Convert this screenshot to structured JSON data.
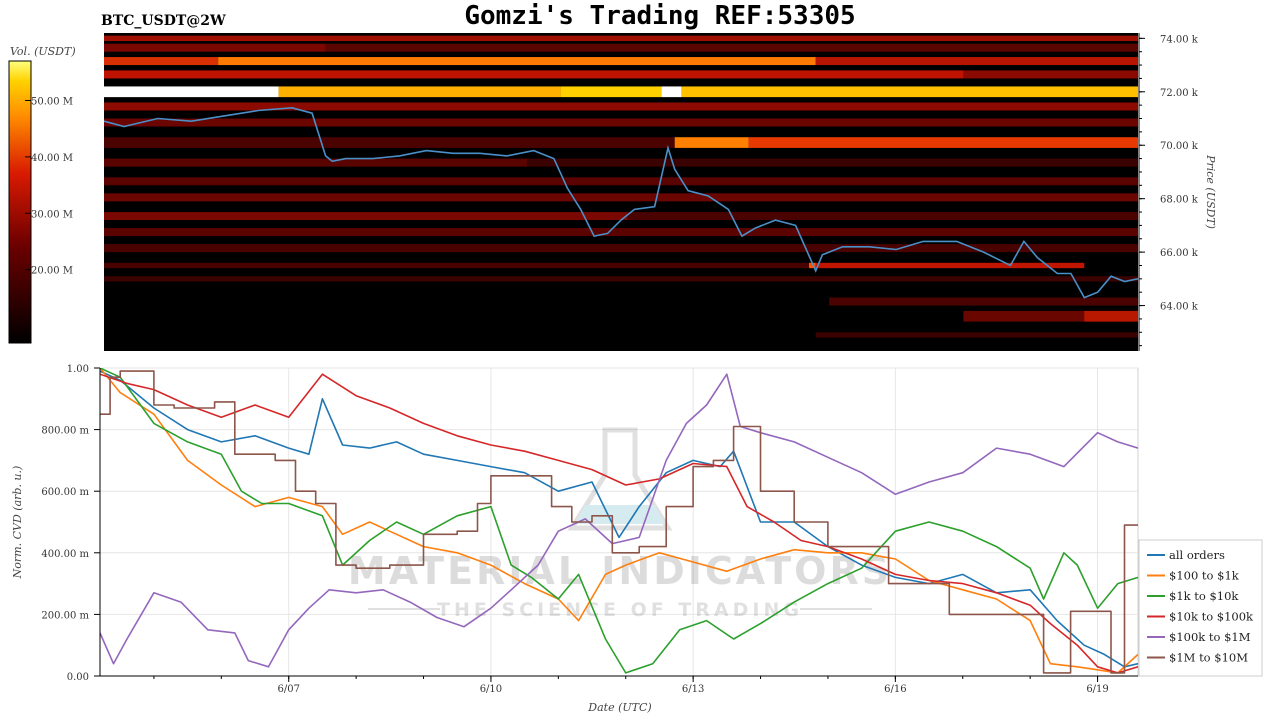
{
  "title": "Gomzi's Trading REF:53305",
  "symbol_label": "BTC_USDT@2W",
  "watermark": {
    "line1": "MATERIAL INDICATORS",
    "line2": "THE SCIENCE OF TRADING"
  },
  "colors": {
    "heat_low": "#000000",
    "heat_mid": "#cc1100",
    "heat_high": "#ffff66",
    "price_line": "#4a90c8",
    "grid": "#e6e6e6"
  },
  "chart_data": [
    {
      "type": "heatmap",
      "title": "",
      "colorbar_label": "Vol. (USDT)",
      "colorbar_ticks": [
        "50.00 M",
        "40.00 M",
        "30.00 M",
        "20.00 M"
      ],
      "colorbar_tick_values": [
        50,
        40,
        30,
        20
      ],
      "colorbar_range": [
        7,
        57
      ],
      "ylabel": "Price (USDT)",
      "y_ticks": [
        "74.00 k",
        "72.00 k",
        "70.00 k",
        "68.00 k",
        "66.00 k",
        "64.00 k"
      ],
      "y_tick_values": [
        74000,
        72000,
        70000,
        68000,
        66000,
        64000
      ],
      "ylim": [
        62300,
        74200
      ],
      "x_range": [
        4.2,
        19.6
      ],
      "price_series": {
        "name": "",
        "x": [
          4.2,
          4.5,
          5.0,
          5.5,
          6.0,
          6.5,
          7.0,
          7.3,
          7.5,
          7.6,
          7.8,
          8.2,
          8.6,
          9.0,
          9.4,
          9.8,
          10.2,
          10.6,
          10.9,
          11.1,
          11.3,
          11.5,
          11.7,
          11.9,
          12.1,
          12.4,
          12.6,
          12.7,
          12.9,
          13.2,
          13.5,
          13.7,
          13.9,
          14.2,
          14.5,
          14.8,
          14.9,
          15.2,
          15.6,
          16.0,
          16.4,
          16.9,
          17.3,
          17.7,
          17.9,
          18.1,
          18.4,
          18.6,
          18.8,
          19.0,
          19.2,
          19.4,
          19.6
        ],
        "y": [
          70900,
          70700,
          71000,
          70900,
          71100,
          71300,
          71400,
          71200,
          69600,
          69400,
          69500,
          69500,
          69600,
          69800,
          69700,
          69700,
          69600,
          69800,
          69500,
          68400,
          67600,
          66600,
          66700,
          67200,
          67600,
          67700,
          69900,
          69100,
          68300,
          68100,
          67600,
          66600,
          66900,
          67200,
          67000,
          65300,
          65900,
          66200,
          66200,
          66100,
          66400,
          66400,
          66000,
          65500,
          66400,
          65800,
          65200,
          65200,
          64300,
          64500,
          65100,
          64900,
          65000
        ]
      }
    },
    {
      "type": "line",
      "title": "",
      "xlabel": "Date (UTC)",
      "ylabel": "Norm. CVD (arb. u.)",
      "x_ticks": [
        "6/07",
        "6/10",
        "6/13",
        "6/16",
        "6/19"
      ],
      "x_tick_values": [
        7,
        10,
        13,
        16,
        19
      ],
      "xlim": [
        4.2,
        19.6
      ],
      "y_ticks": [
        "0.00",
        "200.00 m",
        "400.00 m",
        "600.00 m",
        "800.00 m",
        "1.00"
      ],
      "y_tick_values": [
        0,
        0.2,
        0.4,
        0.6,
        0.8,
        1.0
      ],
      "ylim": [
        0,
        1.0
      ],
      "legend_position": "right",
      "series": [
        {
          "name": "all orders",
          "color": "#1f77b4",
          "x": [
            4.2,
            4.5,
            5.0,
            5.5,
            6.0,
            6.5,
            7.0,
            7.3,
            7.5,
            7.8,
            8.2,
            8.6,
            9.0,
            9.5,
            10.0,
            10.5,
            11.0,
            11.5,
            11.9,
            12.2,
            12.6,
            13.0,
            13.4,
            13.6,
            14.0,
            14.5,
            15.0,
            15.5,
            16.0,
            16.5,
            17.0,
            17.5,
            18.0,
            18.4,
            18.8,
            19.1,
            19.4,
            19.6
          ],
          "y": [
            0.99,
            0.96,
            0.87,
            0.8,
            0.76,
            0.78,
            0.74,
            0.72,
            0.9,
            0.75,
            0.74,
            0.76,
            0.72,
            0.7,
            0.68,
            0.66,
            0.6,
            0.63,
            0.45,
            0.55,
            0.66,
            0.7,
            0.68,
            0.73,
            0.5,
            0.5,
            0.42,
            0.36,
            0.32,
            0.3,
            0.33,
            0.27,
            0.28,
            0.18,
            0.1,
            0.07,
            0.03,
            0.04
          ]
        },
        {
          "name": "$100 to $1k",
          "color": "#ff7f0e",
          "x": [
            4.2,
            4.5,
            5.0,
            5.5,
            6.0,
            6.5,
            7.0,
            7.5,
            7.8,
            8.2,
            8.6,
            9.0,
            9.5,
            10.0,
            10.5,
            11.0,
            11.3,
            11.7,
            12.0,
            12.5,
            13.0,
            13.5,
            14.0,
            14.5,
            15.0,
            15.5,
            16.0,
            16.5,
            17.0,
            17.5,
            18.0,
            18.3,
            18.7,
            19.0,
            19.3,
            19.6
          ],
          "y": [
            1.0,
            0.92,
            0.85,
            0.7,
            0.62,
            0.55,
            0.58,
            0.55,
            0.46,
            0.5,
            0.46,
            0.42,
            0.4,
            0.36,
            0.3,
            0.25,
            0.18,
            0.33,
            0.36,
            0.4,
            0.37,
            0.34,
            0.38,
            0.41,
            0.4,
            0.4,
            0.38,
            0.31,
            0.28,
            0.25,
            0.18,
            0.04,
            0.03,
            0.02,
            0.01,
            0.07
          ]
        },
        {
          "name": "$1k to $10k",
          "color": "#2ca02c",
          "x": [
            4.2,
            4.5,
            5.0,
            5.5,
            6.0,
            6.3,
            6.6,
            7.0,
            7.5,
            7.8,
            8.2,
            8.6,
            9.0,
            9.5,
            10.0,
            10.3,
            10.6,
            11.0,
            11.3,
            11.7,
            12.0,
            12.4,
            12.8,
            13.2,
            13.6,
            14.0,
            14.5,
            15.0,
            15.5,
            16.0,
            16.5,
            17.0,
            17.5,
            18.0,
            18.2,
            18.5,
            18.7,
            19.0,
            19.3,
            19.6
          ],
          "y": [
            1.0,
            0.97,
            0.82,
            0.76,
            0.72,
            0.6,
            0.56,
            0.56,
            0.52,
            0.36,
            0.44,
            0.5,
            0.46,
            0.52,
            0.55,
            0.36,
            0.32,
            0.25,
            0.33,
            0.12,
            0.01,
            0.04,
            0.15,
            0.18,
            0.12,
            0.17,
            0.24,
            0.3,
            0.35,
            0.47,
            0.5,
            0.47,
            0.42,
            0.35,
            0.25,
            0.4,
            0.36,
            0.22,
            0.3,
            0.32
          ]
        },
        {
          "name": "$10k to $100k",
          "color": "#d62728",
          "x": [
            4.2,
            4.6,
            5.0,
            5.5,
            6.0,
            6.5,
            7.0,
            7.5,
            8.0,
            8.5,
            9.0,
            9.5,
            10.0,
            10.5,
            11.0,
            11.5,
            12.0,
            12.5,
            13.0,
            13.5,
            13.8,
            14.2,
            14.6,
            15.0,
            15.5,
            16.0,
            16.5,
            17.0,
            17.5,
            18.0,
            18.3,
            18.7,
            19.0,
            19.3,
            19.6
          ],
          "y": [
            0.98,
            0.95,
            0.93,
            0.88,
            0.84,
            0.88,
            0.84,
            0.98,
            0.91,
            0.87,
            0.82,
            0.78,
            0.75,
            0.73,
            0.7,
            0.67,
            0.62,
            0.64,
            0.69,
            0.68,
            0.55,
            0.5,
            0.44,
            0.42,
            0.38,
            0.33,
            0.31,
            0.3,
            0.27,
            0.23,
            0.17,
            0.1,
            0.03,
            0.01,
            0.03
          ]
        },
        {
          "name": "$100k to $1M",
          "color": "#9467bd",
          "x": [
            4.2,
            4.4,
            4.6,
            5.0,
            5.4,
            5.8,
            6.2,
            6.4,
            6.7,
            7.0,
            7.3,
            7.6,
            8.0,
            8.4,
            8.8,
            9.2,
            9.6,
            10.0,
            10.3,
            10.7,
            11.0,
            11.4,
            11.8,
            12.2,
            12.6,
            12.9,
            13.2,
            13.5,
            13.7,
            14.0,
            14.5,
            15.0,
            15.5,
            16.0,
            16.5,
            17.0,
            17.5,
            18.0,
            18.5,
            19.0,
            19.3,
            19.6
          ],
          "y": [
            0.14,
            0.04,
            0.12,
            0.27,
            0.24,
            0.15,
            0.14,
            0.05,
            0.03,
            0.15,
            0.22,
            0.28,
            0.27,
            0.28,
            0.24,
            0.19,
            0.16,
            0.22,
            0.28,
            0.36,
            0.47,
            0.51,
            0.43,
            0.45,
            0.7,
            0.82,
            0.88,
            0.98,
            0.81,
            0.79,
            0.76,
            0.71,
            0.66,
            0.59,
            0.63,
            0.66,
            0.74,
            0.72,
            0.68,
            0.79,
            0.76,
            0.74
          ]
        },
        {
          "name": "$1M to $10M",
          "color": "#8c564b",
          "x": [
            4.2,
            4.35,
            4.5,
            5.0,
            5.3,
            5.9,
            6.2,
            6.8,
            7.1,
            7.4,
            7.7,
            8.0,
            8.5,
            9.0,
            9.5,
            9.8,
            10.0,
            10.5,
            10.9,
            11.2,
            11.5,
            11.8,
            12.2,
            12.6,
            13.0,
            13.3,
            13.6,
            14.0,
            14.5,
            15.0,
            15.5,
            15.9,
            16.3,
            16.8,
            17.3,
            17.8,
            18.2,
            18.6,
            19.0,
            19.2,
            19.4,
            19.6
          ],
          "y": [
            0.85,
            0.97,
            0.99,
            0.88,
            0.87,
            0.89,
            0.72,
            0.7,
            0.6,
            0.56,
            0.36,
            0.35,
            0.36,
            0.46,
            0.47,
            0.56,
            0.65,
            0.65,
            0.55,
            0.5,
            0.52,
            0.4,
            0.42,
            0.55,
            0.68,
            0.7,
            0.81,
            0.6,
            0.5,
            0.42,
            0.42,
            0.3,
            0.3,
            0.2,
            0.2,
            0.2,
            0.01,
            0.21,
            0.21,
            0.01,
            0.49,
            0.49
          ]
        }
      ]
    }
  ]
}
